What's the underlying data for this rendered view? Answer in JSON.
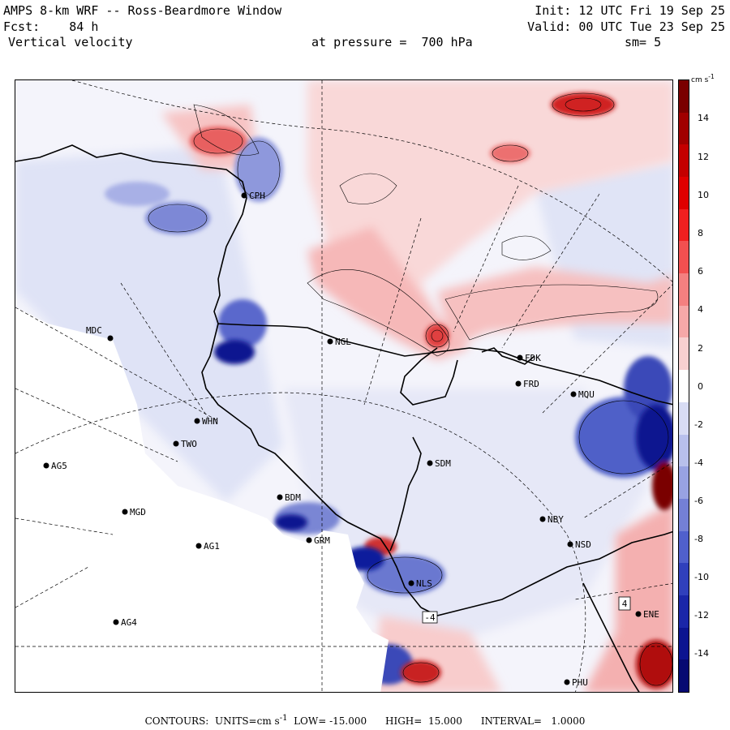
{
  "header": {
    "title": "AMPS 8-km WRF -- Ross-Beardmore Window",
    "forecast": "Fcst:    84 h",
    "field": "Vertical velocity",
    "init": "Init: 12 UTC Fri 19 Sep 25",
    "valid": "Valid: 00 UTC Tue 23 Sep 25",
    "pressure": "at pressure =  700 hPa",
    "smoothing": "sm= 5"
  },
  "colorbar": {
    "units_label": "cm s",
    "units_exp": "-1",
    "ticks": [
      "14",
      "12",
      "10",
      "8",
      "6",
      "4",
      "2",
      "0",
      "-2",
      "-4",
      "-6",
      "-8",
      "-10",
      "-12",
      "-14"
    ],
    "colors": [
      "#7a0000",
      "#a00000",
      "#c40000",
      "#e00000",
      "#f02020",
      "#f25050",
      "#f48080",
      "#f6a8a8",
      "#f8d0d0",
      "#ffffff",
      "#d8dcf4",
      "#b8c0ec",
      "#98a2e2",
      "#7480d6",
      "#5060cc",
      "#3040bc",
      "#1a26a8",
      "#0c1490",
      "#060a72"
    ]
  },
  "stations": [
    {
      "code": "CPH"
    },
    {
      "code": "MDC"
    },
    {
      "code": "NGL"
    },
    {
      "code": "FDK"
    },
    {
      "code": "FRD"
    },
    {
      "code": "MQU"
    },
    {
      "code": "WHN"
    },
    {
      "code": "TWO"
    },
    {
      "code": "AG5"
    },
    {
      "code": "SDM"
    },
    {
      "code": "BDM"
    },
    {
      "code": "MGD"
    },
    {
      "code": "NBY"
    },
    {
      "code": "GRM"
    },
    {
      "code": "AG1"
    },
    {
      "code": "NSD"
    },
    {
      "code": "NLS"
    },
    {
      "code": "AG4"
    },
    {
      "code": "ENE"
    },
    {
      "code": "PHU"
    }
  ],
  "contour_labels": [
    "-4",
    "4"
  ],
  "footer": {
    "contours": "CONTOURS:  UNITS=cm s",
    "units_exp": "-1",
    "rest": "  LOW= -15.000      HIGH=  15.000      INTERVAL=   1.0000"
  }
}
